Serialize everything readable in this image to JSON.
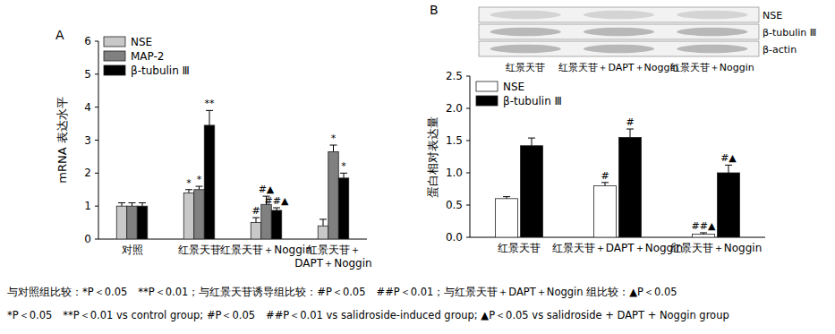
{
  "chart_data": [
    {
      "type": "bar",
      "title": "A",
      "y_label": "mRNA 表达水平",
      "categories": [
        "对照",
        "红景天苷",
        "红景天苷＋Noggin",
        "红景天苷＋\nDAPT＋Noggin"
      ],
      "series": [
        {
          "name": "NSE",
          "color": "#c8c8c8",
          "values": [
            1.0,
            1.4,
            0.5,
            0.4
          ],
          "errors": [
            0.1,
            0.1,
            0.15,
            0.2
          ],
          "annotations": [
            null,
            "*",
            "#",
            null
          ]
        },
        {
          "name": "MAP-2",
          "color": "#808080",
          "values": [
            1.0,
            1.5,
            1.05,
            2.65
          ],
          "errors": [
            0.1,
            0.1,
            0.25,
            0.2
          ],
          "annotations": [
            null,
            "*",
            "#▲",
            "*"
          ]
        },
        {
          "name": "β-tubulin Ⅲ",
          "color": "#000000",
          "values": [
            1.0,
            3.45,
            0.87,
            1.85
          ],
          "errors": [
            0.1,
            0.45,
            0.08,
            0.15
          ],
          "annotations": [
            null,
            "**",
            "##▲",
            "*"
          ]
        }
      ],
      "ylim": [
        0,
        6
      ],
      "yticks": [
        0,
        1,
        2,
        3,
        4,
        5,
        6
      ],
      "grid": false,
      "legend": "upper left"
    },
    {
      "type": "bar",
      "title": "B",
      "y_label": "蛋白相对表达量",
      "categories": [
        "红景天苷",
        "红景天苷＋DAPT＋Noggin",
        "红景天苷＋Noggin"
      ],
      "series": [
        {
          "name": "NSE",
          "color": "#ffffff",
          "values": [
            0.6,
            0.8,
            0.05
          ],
          "errors": [
            0.03,
            0.05,
            0.02
          ],
          "annotations": [
            null,
            "#",
            "##▲"
          ]
        },
        {
          "name": "β-tubulin Ⅲ",
          "color": "#000000",
          "values": [
            1.42,
            1.55,
            1.0
          ],
          "errors": [
            0.12,
            0.13,
            0.12
          ],
          "annotations": [
            null,
            "#",
            "#▲"
          ]
        }
      ],
      "ylim": [
        0,
        2.5
      ],
      "yticks": [
        {
          "value": 0,
          "label": "0.0"
        },
        0.5,
        {
          "value": 1,
          "label": "1.0"
        },
        1.5,
        {
          "value": 2,
          "label": "2.0"
        },
        2.5
      ],
      "grid": false,
      "legend": "upper left",
      "blot": {
        "rows": [
          "NSE",
          "β-tubulin Ⅲ",
          "β-actin"
        ],
        "lanes": [
          "红景天苷",
          "红景天苷＋DAPT＋Noggin",
          "红景天苷＋Noggin"
        ]
      }
    }
  ],
  "notes": [
    "与对照组比较：*P＜0.05　**P＜0.01；与红景天苷诱导组比较：#P＜0.05　##P＜0.01；与红景天苷＋DAPT＋Noggin 组比较：▲P＜0.05",
    "*P＜0.05　**P＜0.01 vs control group; #P＜0.05　##P＜0.01 vs salidroside-induced group; ▲P＜0.05 vs salidroside + DAPT + Noggin group"
  ]
}
